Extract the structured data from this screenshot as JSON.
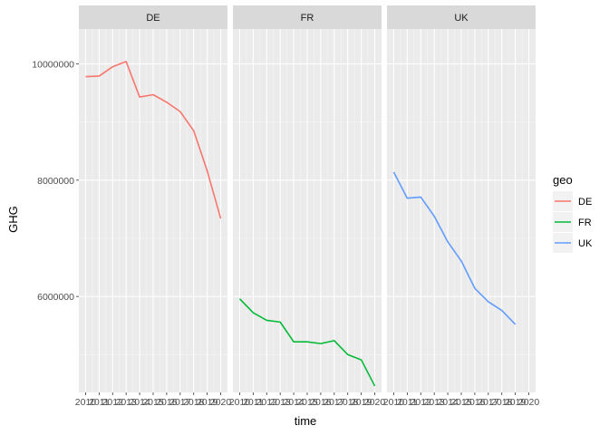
{
  "chart_data": {
    "type": "line",
    "facet_by": "geo",
    "panels": [
      "DE",
      "FR",
      "UK"
    ],
    "xlabel": "time",
    "ylabel": "GHG",
    "x_tick_labels": [
      "2010",
      "2011",
      "2012",
      "2013",
      "2014",
      "2015",
      "2016",
      "2017",
      "2018",
      "2019",
      "2020"
    ],
    "y_ticks": [
      6000000,
      8000000,
      10000000
    ],
    "y_tick_labels": [
      "6000000",
      "8000000",
      "10000000"
    ],
    "ylim": [
      4350000,
      10600000
    ],
    "xlim": [
      2009.5,
      2020.5
    ],
    "grid": true,
    "legend": {
      "title": "geo",
      "placement": "right",
      "entries": [
        "DE",
        "FR",
        "UK"
      ]
    },
    "series": [
      {
        "name": "DE",
        "color": "#F8766D",
        "x": [
          2010,
          2011,
          2012,
          2013,
          2014,
          2015,
          2016,
          2017,
          2018,
          2019,
          2020
        ],
        "values": [
          9780000,
          9790000,
          9950000,
          10040000,
          9430000,
          9470000,
          9340000,
          9180000,
          8850000,
          8160000,
          7340000
        ]
      },
      {
        "name": "FR",
        "color": "#00BA38",
        "x": [
          2010,
          2011,
          2012,
          2013,
          2014,
          2015,
          2016,
          2017,
          2018,
          2019,
          2020
        ],
        "values": [
          5960000,
          5720000,
          5590000,
          5560000,
          5220000,
          5220000,
          5190000,
          5240000,
          5000000,
          4910000,
          4460000
        ]
      },
      {
        "name": "UK",
        "color": "#619CFF",
        "x": [
          2010,
          2011,
          2012,
          2013,
          2014,
          2015,
          2016,
          2017,
          2018,
          2019
        ],
        "values": [
          8140000,
          7690000,
          7710000,
          7380000,
          6940000,
          6610000,
          6140000,
          5910000,
          5760000,
          5520000
        ]
      }
    ]
  }
}
